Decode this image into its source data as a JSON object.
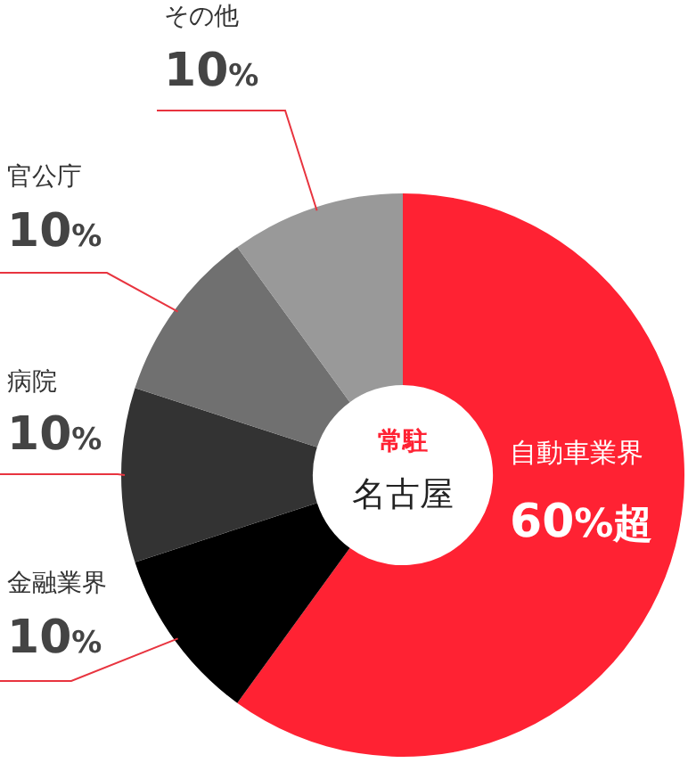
{
  "chart_data": {
    "type": "donut",
    "categories": [
      "自動車業界",
      "金融業界",
      "病院",
      "官公庁",
      "その他"
    ],
    "values": [
      60,
      10,
      10,
      10,
      10
    ],
    "colors": [
      "#ff2233",
      "#000000",
      "#333333",
      "#707070",
      "#999999"
    ],
    "value_labels": [
      "60%超",
      "10%",
      "10%",
      "10%",
      "10%"
    ],
    "annotations": [
      "常駐",
      "名古屋"
    ],
    "legend": false
  }
}
